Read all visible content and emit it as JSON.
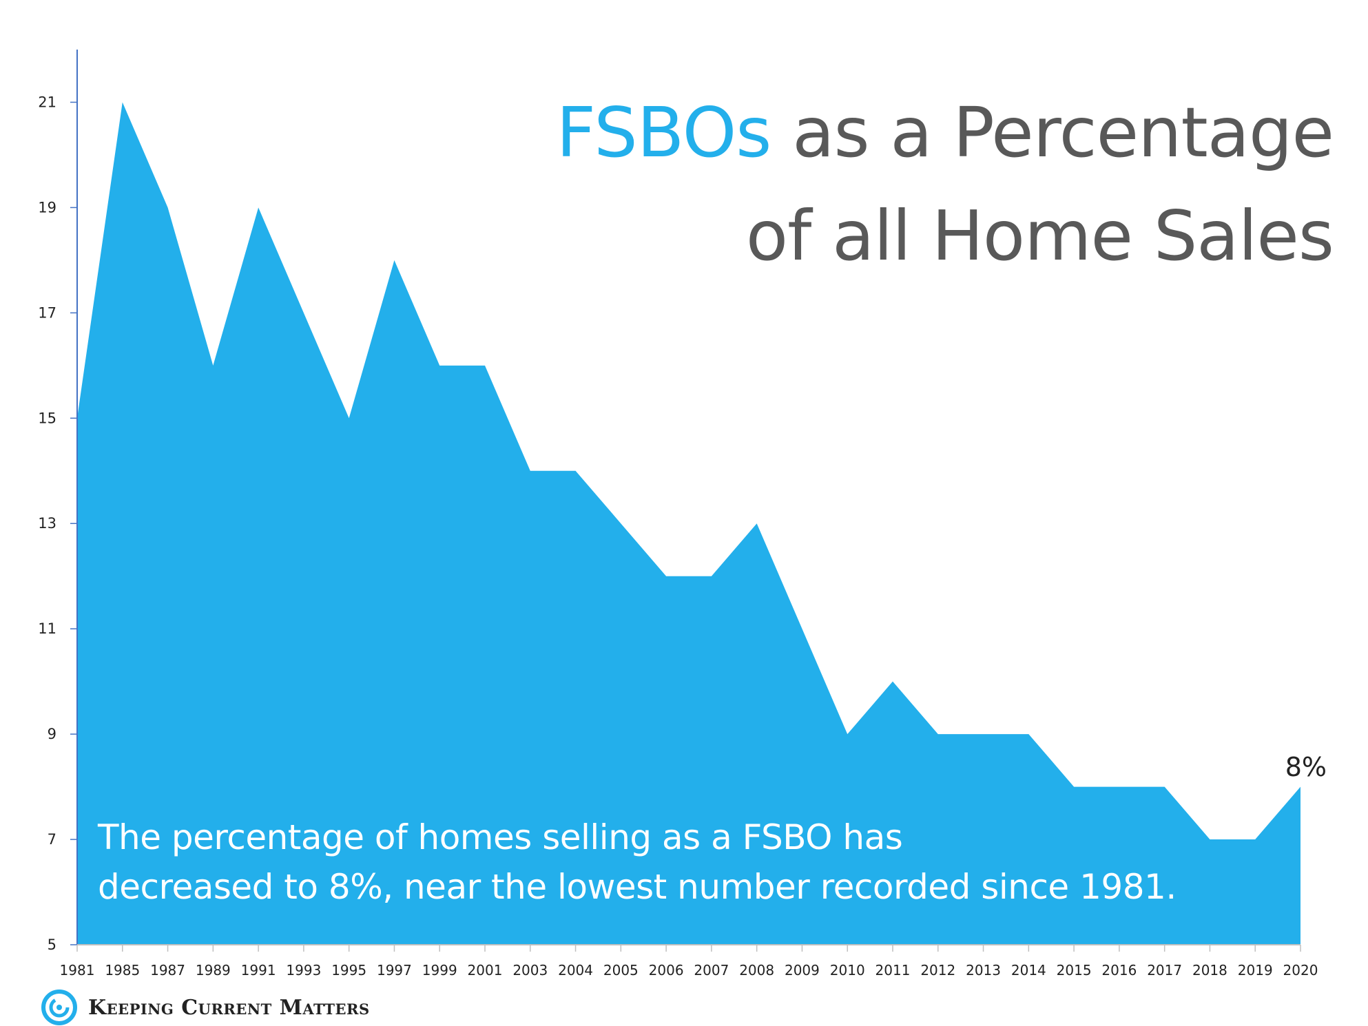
{
  "chart_data": {
    "type": "area",
    "title_accent": "FSBOs",
    "title_rest_line1": " as a Percentage",
    "title_line2": "of all Home Sales",
    "categories": [
      "1981",
      "1985",
      "1987",
      "1989",
      "1991",
      "1993",
      "1995",
      "1997",
      "1999",
      "2001",
      "2003",
      "2004",
      "2005",
      "2006",
      "2007",
      "2008",
      "2009",
      "2010",
      "2011",
      "2012",
      "2013",
      "2014",
      "2015",
      "2016",
      "2017",
      "2018",
      "2019",
      "2020"
    ],
    "values": [
      15,
      21,
      19,
      16,
      19,
      17,
      15,
      18,
      16,
      16,
      14,
      14,
      13,
      12,
      12,
      13,
      11,
      9,
      10,
      9,
      9,
      9,
      8,
      8,
      8,
      7,
      7,
      8
    ],
    "ylim": [
      5,
      22
    ],
    "yticks": [
      5,
      7,
      9,
      11,
      13,
      15,
      17,
      19,
      21
    ],
    "last_value_label": "8%",
    "annotation_line1": "The percentage of homes selling as a FSBO has",
    "annotation_line2": "decreased to 8%, near the lowest number recorded since 1981.",
    "colors": {
      "fill": "#23AFEB",
      "accent": "#23AFEB",
      "title": "#595959",
      "axis": "#4472C4"
    }
  },
  "logo": {
    "text": "Keeping Current Matters",
    "icon": "swirl-logo-icon"
  }
}
